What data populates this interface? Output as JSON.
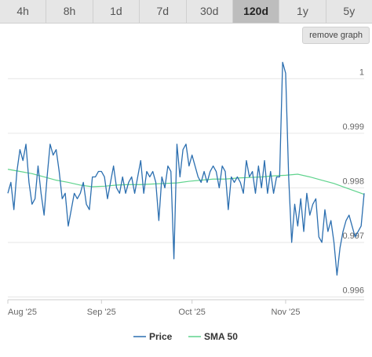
{
  "tabs": [
    {
      "label": "4h",
      "active": false
    },
    {
      "label": "8h",
      "active": false
    },
    {
      "label": "1d",
      "active": false
    },
    {
      "label": "7d",
      "active": false
    },
    {
      "label": "30d",
      "active": false
    },
    {
      "label": "120d",
      "active": true
    },
    {
      "label": "1y",
      "active": false
    },
    {
      "label": "5y",
      "active": false
    }
  ],
  "remove_graph_label": "remove graph",
  "colors": {
    "price": "#2c6fb0",
    "sma": "#5fd38d",
    "grid": "#e6e6e6"
  },
  "chart_data": {
    "type": "line",
    "title": "",
    "xlabel": "",
    "ylabel": "",
    "ylim": [
      0.99595,
      1.00055
    ],
    "y_ticks": [
      0.996,
      0.997,
      0.998,
      0.999,
      1
    ],
    "y_tick_labels": [
      "0.996",
      "0.997",
      "0.998",
      "0.999",
      "1"
    ],
    "x_ticks": [
      {
        "x": 0,
        "label": "Aug '25"
      },
      {
        "x": 31,
        "label": "Sep '25"
      },
      {
        "x": 61,
        "label": "Oct '25"
      },
      {
        "x": 92,
        "label": "Nov '25"
      }
    ],
    "x_range": [
      0,
      118
    ],
    "legend": {
      "position": "bottom"
    },
    "series": [
      {
        "name": "Price",
        "x": [
          0,
          1,
          2,
          3,
          4,
          5,
          6,
          7,
          8,
          9,
          10,
          11,
          12,
          13,
          14,
          15,
          16,
          17,
          18,
          19,
          20,
          21,
          22,
          23,
          24,
          25,
          26,
          27,
          28,
          29,
          30,
          31,
          32,
          33,
          34,
          35,
          36,
          37,
          38,
          39,
          40,
          41,
          42,
          43,
          44,
          45,
          46,
          47,
          48,
          49,
          50,
          51,
          52,
          53,
          54,
          55,
          56,
          57,
          58,
          59,
          60,
          61,
          62,
          63,
          64,
          65,
          66,
          67,
          68,
          69,
          70,
          71,
          72,
          73,
          74,
          75,
          76,
          77,
          78,
          79,
          80,
          81,
          82,
          83,
          84,
          85,
          86,
          87,
          88,
          89,
          90,
          91,
          92,
          93,
          94,
          95,
          96,
          97,
          98,
          99,
          100,
          101,
          102,
          103,
          104,
          105,
          106,
          107,
          108,
          109,
          110,
          111,
          112,
          113,
          114,
          115,
          116,
          117,
          118
        ],
        "values": [
          0.9979,
          0.9981,
          0.9976,
          0.9983,
          0.9987,
          0.9985,
          0.9988,
          0.9981,
          0.9977,
          0.9978,
          0.9984,
          0.9979,
          0.9975,
          0.9982,
          0.9988,
          0.9986,
          0.9987,
          0.9983,
          0.9978,
          0.9979,
          0.9973,
          0.9976,
          0.9979,
          0.9978,
          0.9979,
          0.9981,
          0.9977,
          0.9976,
          0.9982,
          0.9982,
          0.9983,
          0.9983,
          0.9982,
          0.9978,
          0.9981,
          0.9984,
          0.998,
          0.9979,
          0.9982,
          0.9979,
          0.9981,
          0.9982,
          0.9979,
          0.9982,
          0.9985,
          0.9979,
          0.9983,
          0.9982,
          0.9983,
          0.9981,
          0.9974,
          0.9982,
          0.998,
          0.9984,
          0.9983,
          0.9967,
          0.9988,
          0.9982,
          0.9987,
          0.9988,
          0.9984,
          0.9986,
          0.9984,
          0.9982,
          0.9981,
          0.9983,
          0.9981,
          0.9983,
          0.9984,
          0.9983,
          0.998,
          0.9984,
          0.9983,
          0.9976,
          0.9982,
          0.9981,
          0.9982,
          0.9981,
          0.9979,
          0.9985,
          0.9982,
          0.9983,
          0.9979,
          0.9984,
          0.998,
          0.9985,
          0.9979,
          0.9983,
          0.9979,
          0.9982,
          0.9982,
          1.0003,
          1.0001,
          0.9982,
          0.997,
          0.9977,
          0.9973,
          0.9978,
          0.9972,
          0.9979,
          0.9975,
          0.9977,
          0.9978,
          0.9971,
          0.997,
          0.9976,
          0.9972,
          0.9974,
          0.997,
          0.9964,
          0.9969,
          0.9972,
          0.9974,
          0.9975,
          0.9973,
          0.9971,
          0.9972,
          0.9973,
          0.9979
        ]
      },
      {
        "name": "SMA 50",
        "x": [
          0,
          4,
          8,
          12,
          16,
          20,
          24,
          28,
          32,
          36,
          40,
          44,
          48,
          52,
          56,
          60,
          64,
          68,
          72,
          76,
          80,
          84,
          88,
          92,
          96,
          100,
          104,
          108,
          112,
          116,
          118
        ],
        "values": [
          0.99834,
          0.9983,
          0.99826,
          0.9982,
          0.99814,
          0.9981,
          0.99805,
          0.99802,
          0.99803,
          0.99805,
          0.99806,
          0.99806,
          0.99807,
          0.99808,
          0.99809,
          0.99812,
          0.99814,
          0.99816,
          0.99816,
          0.99818,
          0.99819,
          0.9982,
          0.99822,
          0.99823,
          0.99825,
          0.9982,
          0.99814,
          0.99808,
          0.998,
          0.99792,
          0.99788
        ]
      }
    ]
  }
}
